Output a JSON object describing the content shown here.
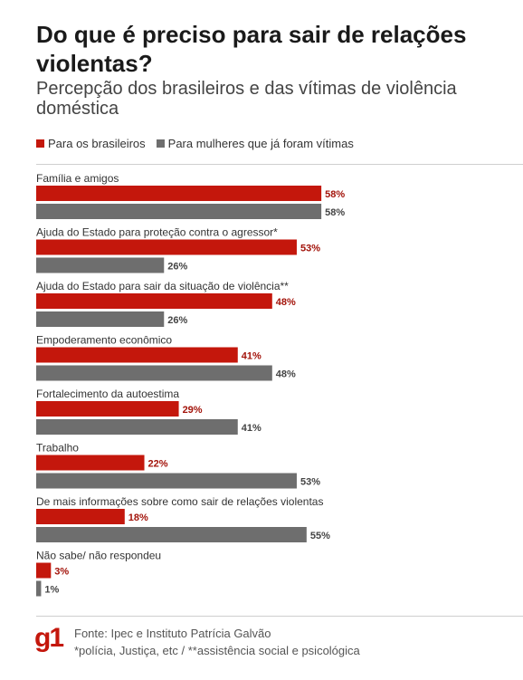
{
  "header": {
    "title": "Do que é preciso para sair de relações violentas?",
    "subtitle": "Percepção dos brasileiros e das vítimas de violência doméstica"
  },
  "legend": {
    "items": [
      {
        "label": "Para os brasileiros",
        "color": "#c4170c"
      },
      {
        "label": "Para mulheres que já foram vítimas",
        "color": "#6e6e6e"
      }
    ]
  },
  "chart_data": {
    "type": "bar",
    "orientation": "horizontal",
    "categories": [
      "Família e amigos",
      "Ajuda do Estado para proteção contra o agressor*",
      "Ajuda do Estado para sair da situação de violência**",
      "Empoderamento econômico",
      "Fortalecimento da autoestima",
      "Trabalho",
      "De mais informações sobre como sair de relações violentas",
      "Não sabe/ não respondeu"
    ],
    "series": [
      {
        "name": "Para os brasileiros",
        "color": "#c4170c",
        "values": [
          58,
          53,
          48,
          41,
          29,
          22,
          18,
          3
        ],
        "labels": [
          "58%",
          "53%",
          "48%",
          "41%",
          "29%",
          "22%",
          "18%",
          "3%"
        ]
      },
      {
        "name": "Para mulheres que já foram vítimas",
        "color": "#6e6e6e",
        "values": [
          58,
          26,
          26,
          48,
          41,
          53,
          55,
          1
        ],
        "labels": [
          "58%",
          "26%",
          "26%",
          "48%",
          "41%",
          "53%",
          "55%",
          "1%"
        ]
      }
    ],
    "unit": "%",
    "xlim": [
      0,
      60
    ],
    "grid": false,
    "legend_position": "top-left"
  },
  "footer": {
    "logo": "g1",
    "source": "Fonte: Ipec e Instituto Patrícia Galvão",
    "note": "*polícia, Justiça, etc / **assistência social e psicológica"
  }
}
